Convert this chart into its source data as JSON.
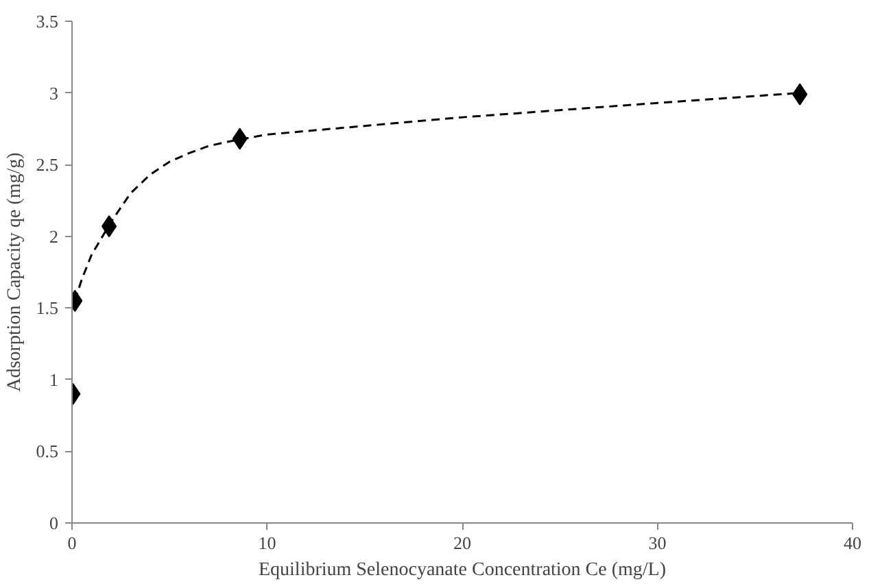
{
  "chart_data": {
    "type": "scatter",
    "xlabel": "Equilibrium Selenocyanate Concentration Ce (mg/L)",
    "ylabel": "Adsorption Capacity qe (mg/g)",
    "xlim": [
      0,
      40
    ],
    "xticks": [
      0,
      10,
      20,
      30,
      40
    ],
    "ylim": [
      0,
      3.5
    ],
    "yticks": [
      0,
      0.5,
      1,
      1.5,
      2,
      2.5,
      3,
      3.5
    ],
    "grid": false,
    "series": [
      {
        "marker": "diamond",
        "color": "#000000",
        "x": [
          0.05,
          0.15,
          1.9,
          8.6,
          37.3
        ],
        "values": [
          0.9,
          1.55,
          2.07,
          2.68,
          2.99
        ]
      },
      {
        "type": "line",
        "marker": "none",
        "line_style": "dashed",
        "color": "#000000",
        "x": [
          0.15,
          0.5,
          1,
          2,
          3,
          4,
          5,
          6,
          7,
          8,
          10,
          15,
          20,
          25,
          30,
          37.3
        ],
        "values": [
          1.55,
          1.7,
          1.87,
          2.1,
          2.3,
          2.43,
          2.52,
          2.58,
          2.63,
          2.66,
          2.71,
          2.77,
          2.83,
          2.88,
          2.93,
          3.0
        ]
      }
    ]
  }
}
